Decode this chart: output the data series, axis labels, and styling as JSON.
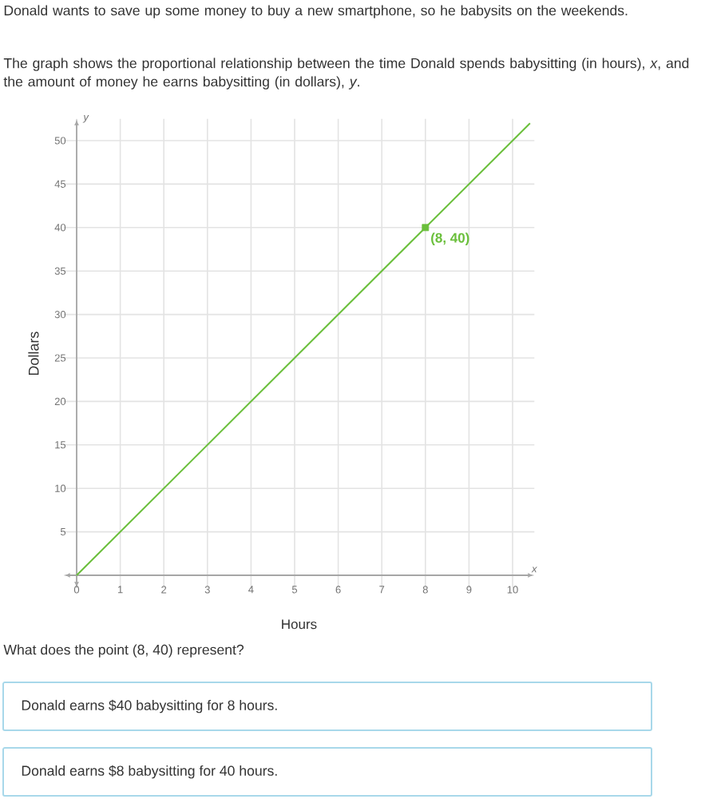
{
  "chart_data": {
    "type": "line",
    "title": "Donald wants to save up some money to buy a new smartphone, so he babysits on the weekends.",
    "subtitle": "The graph shows the proportional relationship between the time Donald spends babysitting (in hours), *x*, and the amount of money he earns babysitting (in dollars), *y*.",
    "xlabel": "Hours",
    "ylabel": "Dollars",
    "x": [
      0,
      10.4
    ],
    "series": [
      {
        "color": "#6abf3b",
        "values": [
          0,
          52
        ],
        "marker": "none"
      },
      {
        "type": "scatter",
        "color": "#6abf3b",
        "x": [
          8
        ],
        "values": [
          40
        ],
        "marker": "square"
      }
    ],
    "xlim": [
      -0.3,
      10.5
    ],
    "ylim": [
      -1.5,
      52.5
    ],
    "xticks": [
      0,
      1,
      2,
      3,
      4,
      5,
      6,
      7,
      8,
      9,
      10
    ],
    "yticks": [
      5,
      10,
      15,
      20,
      25,
      30,
      35,
      40,
      45,
      50
    ],
    "grid": true,
    "annotations": [
      "x",
      "y",
      "What does the point (8, 40) represent?",
      "Donald earns $40 babysitting for 8 hours.",
      "Donald earns $8 babysitting for 40 hours.",
      {
        "text": "(8, 40)",
        "x": 8,
        "y": 40
      }
    ]
  }
}
